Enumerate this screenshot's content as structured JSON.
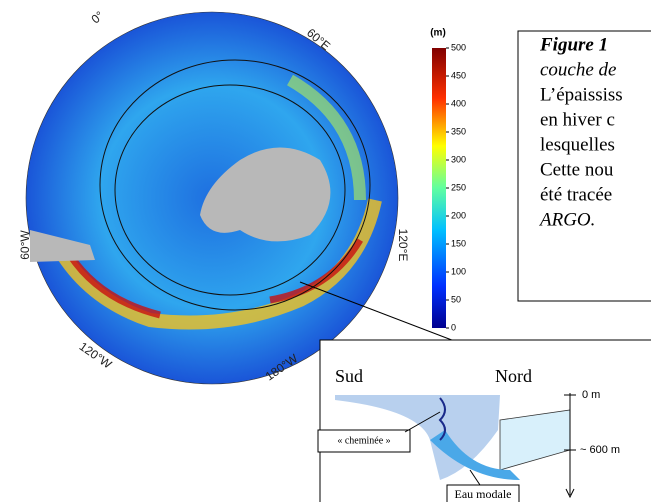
{
  "map": {
    "longitude_labels": [
      "0°",
      "60°E",
      "120°E",
      "180°W",
      "120°W",
      "60°W"
    ],
    "colorbar": {
      "unit": "(m)",
      "ticks": [
        500,
        450,
        400,
        350,
        300,
        250,
        200,
        150,
        100,
        50,
        0
      ]
    }
  },
  "caption": {
    "lines": [
      "Figure 1",
      "couche de",
      "L’épaississ",
      "en hiver c",
      "lesquelles",
      "Cette nou",
      "été tracée",
      "ARGO."
    ]
  },
  "inset": {
    "south": "Sud",
    "north": "Nord",
    "top_depth": "0 m",
    "bottom_depth": "~ 600 m",
    "chimney": "« cheminée »",
    "mode_water": "Eau modale"
  }
}
